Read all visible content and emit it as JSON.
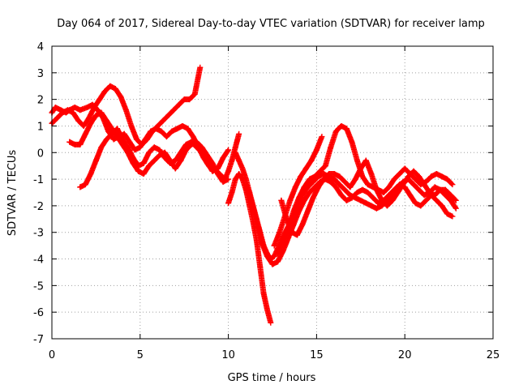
{
  "chart_data": {
    "type": "scatter",
    "title": "Day 064 of 2017, Sidereal Day-to-day VTEC variation (SDTVAR) for receiver lamp",
    "xlabel": "GPS time / hours",
    "ylabel": "SDTVAR / TECUs",
    "xlim": [
      0,
      25
    ],
    "ylim": [
      -7,
      4
    ],
    "xticks": [
      0,
      5,
      10,
      15,
      20,
      25
    ],
    "yticks": [
      -7,
      -6,
      -5,
      -4,
      -3,
      -2,
      -1,
      0,
      1,
      2,
      3,
      4
    ],
    "grid": true,
    "marker": "plus",
    "series": [
      {
        "color": "#ff0000",
        "x": [
          0.0,
          0.2,
          0.5,
          0.8,
          1.0,
          1.3,
          1.6,
          2.0,
          2.3,
          2.6,
          2.9,
          3.2,
          3.5,
          3.8,
          4.1,
          4.4,
          4.7,
          5.0,
          5.3,
          5.6,
          5.9,
          6.2,
          6.5,
          6.8,
          7.1,
          7.4,
          7.7,
          8.0,
          8.3,
          8.6,
          8.9,
          9.2,
          9.5,
          9.8,
          10.0,
          10.2,
          10.4,
          10.6
        ],
        "y": [
          1.5,
          1.7,
          1.6,
          1.5,
          1.6,
          1.7,
          1.6,
          1.7,
          1.8,
          1.6,
          1.3,
          0.8,
          0.5,
          0.6,
          0.7,
          0.4,
          0.1,
          0.2,
          0.5,
          0.8,
          0.9,
          0.8,
          0.6,
          0.8,
          0.9,
          1.0,
          0.9,
          0.6,
          0.2,
          -0.2,
          -0.5,
          -0.6,
          -0.8,
          -1.0,
          -0.7,
          -0.3,
          0.2,
          0.7
        ]
      },
      {
        "color": "#ff0000",
        "x": [
          0.0,
          0.3,
          0.6,
          0.9,
          1.2,
          1.5,
          1.8,
          2.1,
          2.4,
          2.7,
          3.0,
          3.3,
          3.6,
          3.9,
          4.2,
          4.5,
          4.8,
          5.1,
          5.4,
          5.7,
          6.0,
          6.3,
          6.6,
          6.9,
          7.2,
          7.5,
          7.8,
          8.1,
          8.4
        ],
        "y": [
          1.1,
          1.3,
          1.5,
          1.6,
          1.5,
          1.2,
          1.0,
          1.3,
          1.7,
          2.0,
          2.3,
          2.5,
          2.4,
          2.1,
          1.6,
          1.0,
          0.5,
          0.3,
          0.5,
          0.8,
          1.0,
          1.2,
          1.4,
          1.6,
          1.8,
          2.0,
          2.0,
          2.2,
          3.2
        ]
      },
      {
        "color": "#ff0000",
        "x": [
          1.6,
          1.9,
          2.2,
          2.5,
          2.8,
          3.1,
          3.4,
          3.7,
          4.0,
          4.3,
          4.6,
          4.9,
          5.2,
          5.5,
          5.8,
          6.1,
          6.4,
          6.7,
          7.0,
          7.3,
          7.6,
          7.9,
          8.2,
          8.5,
          8.8,
          9.1,
          9.4,
          9.7,
          10.0
        ],
        "y": [
          -1.3,
          -1.2,
          -0.8,
          -0.3,
          0.2,
          0.5,
          0.7,
          0.9,
          0.5,
          0.2,
          -0.2,
          -0.5,
          -0.4,
          0.0,
          0.2,
          0.1,
          -0.2,
          -0.4,
          -0.3,
          0.0,
          0.3,
          0.4,
          0.2,
          0.0,
          -0.4,
          -0.7,
          -0.6,
          -0.2,
          0.1
        ]
      },
      {
        "color": "#ff0000",
        "x": [
          1.0,
          1.3,
          1.6,
          1.9,
          2.2,
          2.5,
          2.8,
          3.1,
          3.4,
          3.7,
          4.0,
          4.3,
          4.6,
          4.9,
          5.2,
          5.5,
          5.8,
          6.1,
          6.4,
          6.7,
          7.0,
          7.3,
          7.6,
          7.9,
          8.2,
          8.5,
          8.8,
          9.1,
          9.4,
          9.7,
          10.0
        ],
        "y": [
          0.4,
          0.3,
          0.3,
          0.7,
          1.1,
          1.4,
          1.5,
          1.2,
          0.9,
          0.6,
          0.3,
          0.0,
          -0.4,
          -0.7,
          -0.8,
          -0.5,
          -0.3,
          -0.1,
          0.0,
          -0.3,
          -0.6,
          -0.3,
          0.1,
          0.3,
          0.4,
          0.2,
          -0.1,
          -0.4,
          -0.8,
          -1.1,
          -1.0
        ]
      },
      {
        "color": "#ff0000",
        "x": [
          10.0,
          10.2,
          10.4,
          10.6,
          10.8,
          11.0,
          11.2,
          11.4,
          11.6,
          11.8,
          12.0,
          12.2,
          12.4
        ],
        "y": [
          -1.9,
          -1.5,
          -1.0,
          -0.8,
          -1.0,
          -1.4,
          -2.0,
          -2.6,
          -3.3,
          -4.3,
          -5.3,
          -5.9,
          -6.4
        ]
      },
      {
        "color": "#ff0000",
        "x": [
          10.4,
          10.6,
          10.8,
          11.0,
          11.2,
          11.4,
          11.6,
          11.8,
          12.0,
          12.2,
          12.4,
          12.6,
          12.8,
          13.0,
          13.3,
          13.6,
          13.9,
          14.2,
          14.5,
          14.8,
          15.1,
          15.4,
          15.7,
          16.0,
          16.3,
          16.6,
          16.9,
          17.2,
          17.5,
          17.8,
          18.1,
          18.4,
          18.7,
          19.0,
          19.3,
          19.6,
          19.9,
          20.2,
          20.5,
          20.8,
          21.1,
          21.4,
          21.7,
          22.0,
          22.3,
          22.6,
          22.9
        ],
        "y": [
          0.0,
          -0.3,
          -0.6,
          -1.0,
          -1.5,
          -2.0,
          -2.5,
          -3.0,
          -3.5,
          -3.8,
          -4.0,
          -3.9,
          -3.6,
          -3.3,
          -2.9,
          -2.5,
          -2.0,
          -1.6,
          -1.3,
          -1.1,
          -0.9,
          -0.8,
          -0.9,
          -1.0,
          -1.2,
          -1.4,
          -1.6,
          -1.7,
          -1.8,
          -1.9,
          -2.0,
          -2.1,
          -2.0,
          -1.8,
          -1.6,
          -1.3,
          -1.1,
          -1.0,
          -1.2,
          -1.4,
          -1.6,
          -1.5,
          -1.3,
          -1.4,
          -1.6,
          -1.8,
          -2.1
        ]
      },
      {
        "color": "#ff0000",
        "x": [
          11.0,
          11.3,
          11.6,
          11.9,
          12.2,
          12.5,
          12.8,
          13.1,
          13.4,
          13.7,
          14.0,
          14.3,
          14.6,
          14.9,
          15.2,
          15.5,
          15.8,
          16.1,
          16.4,
          16.7,
          17.0,
          17.3,
          17.6,
          17.9,
          18.2,
          18.5,
          18.8,
          19.1,
          19.4,
          19.7,
          20.0,
          20.3,
          20.6,
          20.9,
          21.2,
          21.5,
          21.8,
          22.1,
          22.4,
          22.7
        ],
        "y": [
          -1.2,
          -1.8,
          -2.6,
          -3.4,
          -3.9,
          -4.2,
          -4.1,
          -3.7,
          -3.2,
          -2.7,
          -2.2,
          -1.8,
          -1.5,
          -1.3,
          -1.1,
          -1.0,
          -1.1,
          -1.3,
          -1.6,
          -1.8,
          -1.7,
          -1.5,
          -1.4,
          -1.5,
          -1.7,
          -1.9,
          -1.8,
          -1.6,
          -1.4,
          -1.2,
          -1.3,
          -1.6,
          -1.9,
          -2.0,
          -1.8,
          -1.6,
          -1.8,
          -2.0,
          -2.3,
          -2.4
        ]
      },
      {
        "color": "#ff0000",
        "x": [
          12.6,
          12.9,
          13.2,
          13.5,
          13.8,
          14.1,
          14.4,
          14.7,
          15.0,
          15.3
        ],
        "y": [
          -3.5,
          -3.0,
          -2.4,
          -1.8,
          -1.3,
          -0.9,
          -0.6,
          -0.3,
          0.1,
          0.6
        ]
      },
      {
        "color": "#ff0000",
        "x": [
          12.8,
          13.1,
          13.4,
          13.7,
          14.0,
          14.3,
          14.6,
          14.9,
          15.2,
          15.5,
          15.8,
          16.1,
          16.4,
          16.7,
          17.0,
          17.3,
          17.6,
          17.9,
          18.2,
          18.5,
          18.8,
          19.1,
          19.4,
          19.7,
          20.0,
          20.3,
          20.6,
          20.9,
          21.2,
          21.5,
          21.8,
          22.1,
          22.4,
          22.7
        ],
        "y": [
          -3.8,
          -3.3,
          -2.8,
          -2.2,
          -1.7,
          -1.3,
          -1.0,
          -0.9,
          -0.7,
          -0.5,
          0.2,
          0.8,
          1.0,
          0.9,
          0.4,
          -0.3,
          -0.9,
          -1.2,
          -1.3,
          -1.4,
          -1.5,
          -1.3,
          -1.0,
          -0.8,
          -0.6,
          -0.8,
          -1.0,
          -1.2,
          -1.1,
          -0.9,
          -0.8,
          -0.9,
          -1.0,
          -1.2
        ]
      },
      {
        "color": "#ff0000",
        "x": [
          13.0,
          13.3,
          13.6,
          13.9,
          14.2,
          14.5,
          14.8,
          15.1,
          15.4,
          15.7,
          16.0,
          16.3,
          16.6,
          16.9,
          17.2,
          17.5,
          17.8,
          18.1,
          18.4,
          18.7,
          19.0,
          19.3,
          19.6,
          19.9,
          20.2,
          20.5,
          20.8,
          21.1,
          21.4,
          21.7,
          22.0,
          22.3,
          22.6,
          22.9
        ],
        "y": [
          -1.8,
          -2.5,
          -3.0,
          -3.1,
          -2.7,
          -2.2,
          -1.7,
          -1.3,
          -1.0,
          -0.8,
          -0.8,
          -0.9,
          -1.1,
          -1.3,
          -1.0,
          -0.6,
          -0.3,
          -0.8,
          -1.4,
          -1.8,
          -2.0,
          -1.8,
          -1.5,
          -1.2,
          -0.9,
          -0.7,
          -0.9,
          -1.2,
          -1.5,
          -1.6,
          -1.4,
          -1.4,
          -1.6,
          -1.8
        ]
      }
    ]
  }
}
